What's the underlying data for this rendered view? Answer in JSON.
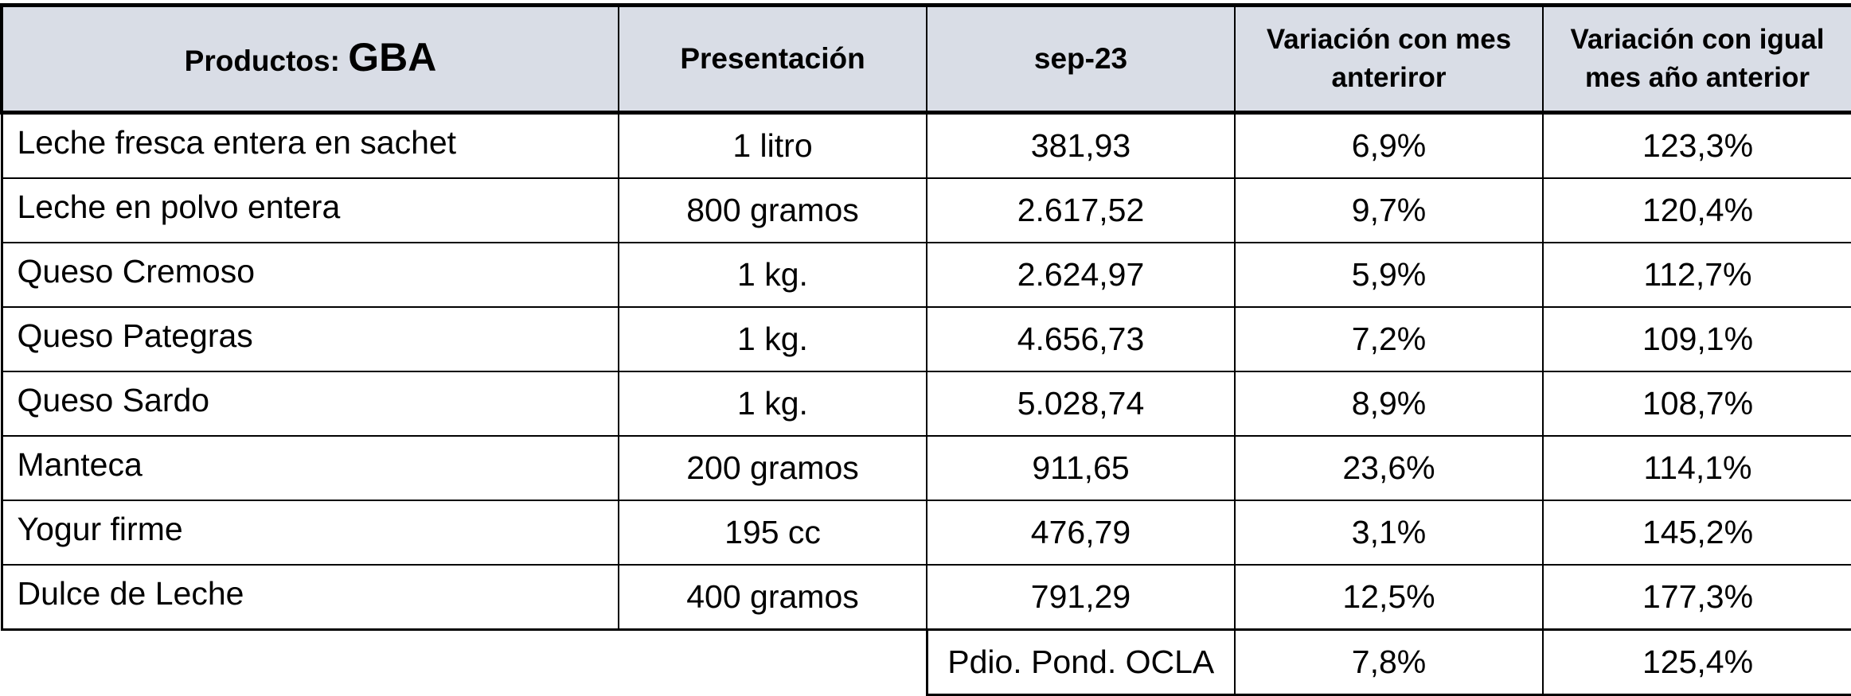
{
  "header": {
    "col1_prefix": "Productos:",
    "col1_region": "GBA",
    "col2": "Presentación",
    "col3": "sep-23",
    "col4_line1": "Variación con mes",
    "col4_line2": "anteriror",
    "col5_line1": "Variación con igual",
    "col5_line2": "mes año anterior"
  },
  "rows": [
    {
      "producto": "Leche fresca entera en sachet",
      "presentacion": "1 litro",
      "precio": "381,93",
      "var_mes": "6,9%",
      "var_anio": "123,3%"
    },
    {
      "producto": "Leche en polvo entera",
      "presentacion": "800 gramos",
      "precio": "2.617,52",
      "var_mes": "9,7%",
      "var_anio": "120,4%"
    },
    {
      "producto": "Queso Cremoso",
      "presentacion": "1 kg.",
      "precio": "2.624,97",
      "var_mes": "5,9%",
      "var_anio": "112,7%"
    },
    {
      "producto": "Queso Pategras",
      "presentacion": "1 kg.",
      "precio": "4.656,73",
      "var_mes": "7,2%",
      "var_anio": "109,1%"
    },
    {
      "producto": "Queso Sardo",
      "presentacion": "1 kg.",
      "precio": "5.028,74",
      "var_mes": "8,9%",
      "var_anio": "108,7%"
    },
    {
      "producto": "Manteca",
      "presentacion": "200 gramos",
      "precio": "911,65",
      "var_mes": "23,6%",
      "var_anio": "114,1%"
    },
    {
      "producto": "Yogur firme",
      "presentacion": "195 cc",
      "precio": "476,79",
      "var_mes": "3,1%",
      "var_anio": "145,2%"
    },
    {
      "producto": "Dulce de Leche",
      "presentacion": "400 gramos",
      "precio": "791,29",
      "var_mes": "12,5%",
      "var_anio": "177,3%"
    }
  ],
  "footer": {
    "label": "Pdio. Pond. OCLA",
    "var_mes": "7,8%",
    "var_anio": "125,4%"
  }
}
